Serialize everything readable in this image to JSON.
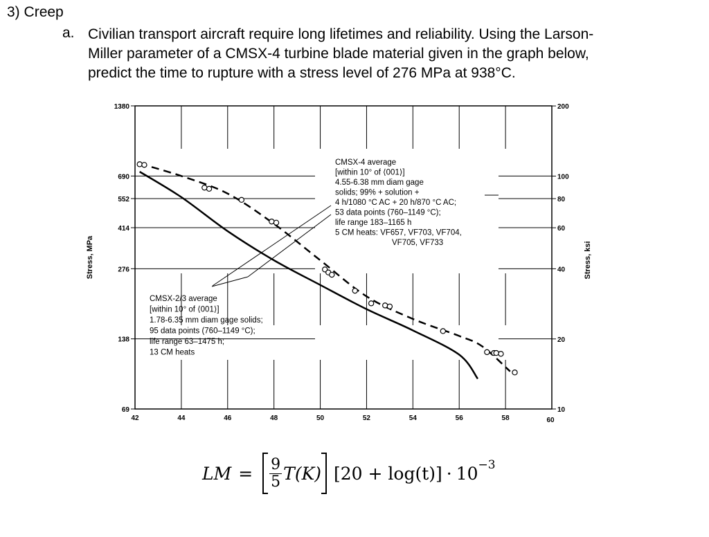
{
  "question": {
    "number": "3)",
    "heading": "Creep",
    "part_letter": "a.",
    "lines": [
      "Civilian transport aircraft require long lifetimes and reliability.  Using the Larson-",
      "Miller parameter of a CMSX-4 turbine blade material given in the graph below,",
      "predict the time to rupture with a stress level of 276 MPa at 938°C."
    ]
  },
  "formula": {
    "lhs": "LM",
    "eq": "=",
    "frac_num": "9",
    "frac_den": "5",
    "temp": "T(K)",
    "bracket2": "[20 + log(t)]",
    "times": "·",
    "mult": "10",
    "exponent": "−3"
  },
  "chart_data": {
    "type": "line",
    "title": "",
    "xlabel": "",
    "ylabel": "Stress, MPa",
    "ylabel_right": "Stress, ksi",
    "x_ticks": [
      "42",
      "44",
      "46",
      "48",
      "50",
      "52",
      "54",
      "56",
      "58",
      "60"
    ],
    "xlim": [
      42,
      60
    ],
    "yscale": "log",
    "ylim": [
      69,
      1380
    ],
    "y_ticks_left": [
      "69",
      "138",
      "276",
      "414",
      "552",
      "690",
      "1380"
    ],
    "y_ticks_right": [
      "10",
      "20",
      "40",
      "60",
      "80",
      "100",
      "200"
    ],
    "grid": true,
    "series": [
      {
        "name": "CMSX-4 average",
        "style": "dashed",
        "x": [
          42.2,
          44.0,
          46.0,
          48.0,
          50.0,
          52.0,
          54.0,
          56.0,
          57.0,
          58.2
        ],
        "y": [
          780,
          690,
          580,
          430,
          300,
          210,
          168,
          142,
          128,
          100
        ]
      },
      {
        "name": "CMSX-2/3 average",
        "style": "solid",
        "x": [
          42.2,
          44.0,
          46.0,
          48.0,
          50.0,
          52.0,
          54.0,
          56.0,
          56.8
        ],
        "y": [
          720,
          560,
          400,
          300,
          235,
          185,
          150,
          118,
          93
        ]
      }
    ],
    "data_points": {
      "x": [
        42.2,
        42.4,
        45.0,
        45.2,
        46.6,
        47.9,
        48.1,
        50.2,
        50.35,
        50.5,
        51.5,
        52.2,
        52.8,
        53.0,
        55.3,
        57.2,
        57.5,
        57.6,
        57.8,
        58.4
      ],
      "y": [
        775,
        770,
        615,
        608,
        545,
        440,
        435,
        274,
        266,
        260,
        222,
        196,
        192,
        190,
        149,
        121,
        120,
        120,
        119,
        99
      ]
    },
    "annotations": [
      {
        "for": "CMSX-4 average",
        "lines": [
          "CMSX-4 average",
          "[within 10° of ⟨001⟩]",
          "4.55-6.38 mm diam gage",
          "solids; 99% + solution +",
          "4 h/1080 °C AC + 20 h/870 °C AC;",
          "53 data points (760–1149 °C);",
          "life range 183–1165 h",
          "5 CM heats: VF657, VF703, VF704,",
          "VF705, VF733"
        ]
      },
      {
        "for": "CMSX-2/3 average",
        "lines": [
          "CMSX-2/3 average",
          "[within 10° of ⟨001⟩]",
          "1.78-6.35 mm diam gage solids;",
          "95 data points (760–1149 °C);",
          "life range 63–1475 h;",
          "13 CM heats"
        ]
      }
    ],
    "colors": {
      "line": "#000000",
      "grid": "#000000"
    }
  }
}
